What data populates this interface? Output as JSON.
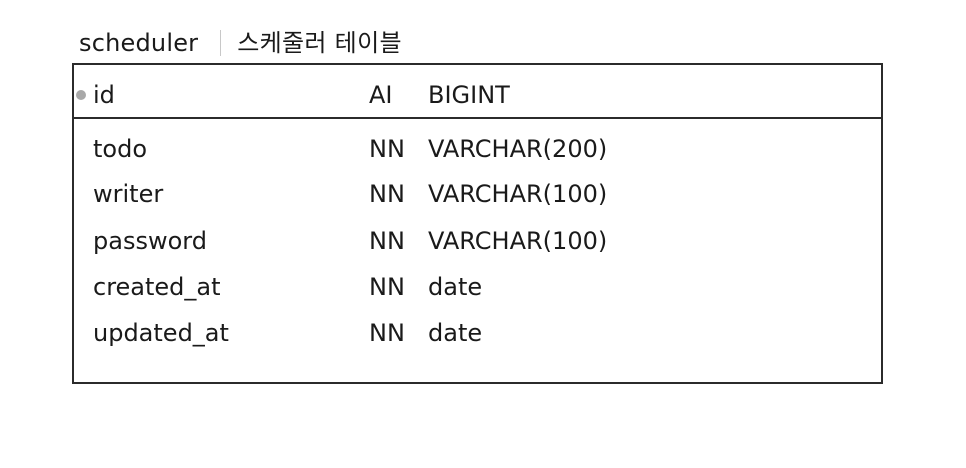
{
  "table": {
    "name": "scheduler",
    "comment": "스케줄러 테이블"
  },
  "primary_key": {
    "name": "id",
    "flag": "AI",
    "type": "BIGINT",
    "marker_icon": "primary-key-dot-icon"
  },
  "columns": [
    {
      "name": "todo",
      "flag": "NN",
      "type": "VARCHAR(200)"
    },
    {
      "name": "writer",
      "flag": "NN",
      "type": "VARCHAR(100)"
    },
    {
      "name": "password",
      "flag": "NN",
      "type": "VARCHAR(100)"
    },
    {
      "name": "created_at",
      "flag": "NN",
      "type": "date"
    },
    {
      "name": "updated_at",
      "flag": "NN",
      "type": "date"
    }
  ],
  "colors": {
    "border": "#2b2b2b",
    "text": "#1a1a1a",
    "pk_marker": "#a8a8a8",
    "divider": "#c8c8c8"
  }
}
